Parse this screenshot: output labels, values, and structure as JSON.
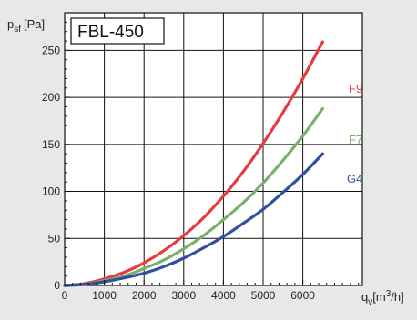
{
  "chart_data": {
    "type": "line",
    "title": "FBL-450",
    "ylabel": {
      "symbol": "p",
      "subscript": "sf",
      "unit": "[Pa]"
    },
    "xlabel": {
      "symbol": "q",
      "subscript": "v",
      "unit_prefix": "[m",
      "unit_sup": "3",
      "unit_suffix": "/h]"
    },
    "xlim": [
      0,
      7500
    ],
    "ylim": [
      0,
      290
    ],
    "x_ticks": [
      0,
      1000,
      2000,
      3000,
      4000,
      5000,
      6000
    ],
    "y_ticks": [
      0,
      50,
      100,
      150,
      200,
      250
    ],
    "grid": true,
    "series": [
      {
        "name": "F9",
        "color": "#e8393f",
        "x": [
          0,
          500,
          1000,
          1500,
          2000,
          2500,
          3000,
          3500,
          4000,
          4500,
          5000,
          5500,
          6000,
          6500
        ],
        "y": [
          0,
          2,
          7,
          14,
          24,
          37,
          53,
          72,
          95,
          121,
          151,
          184,
          220,
          259
        ]
      },
      {
        "name": "F7",
        "color": "#7cb06a",
        "x": [
          0,
          500,
          1000,
          1500,
          2000,
          2500,
          3000,
          3500,
          4000,
          4500,
          5000,
          5500,
          6000,
          6500
        ],
        "y": [
          0,
          1,
          5,
          10,
          18,
          27,
          39,
          53,
          70,
          88,
          109,
          133,
          159,
          188
        ]
      },
      {
        "name": "G4",
        "color": "#2f4fa0",
        "x": [
          0,
          500,
          1000,
          1500,
          2000,
          2500,
          3000,
          3500,
          4000,
          4500,
          5000,
          5500,
          6000,
          6500
        ],
        "y": [
          0,
          1,
          4,
          8,
          13,
          20,
          29,
          40,
          52,
          66,
          81,
          99,
          118,
          140
        ]
      }
    ]
  }
}
